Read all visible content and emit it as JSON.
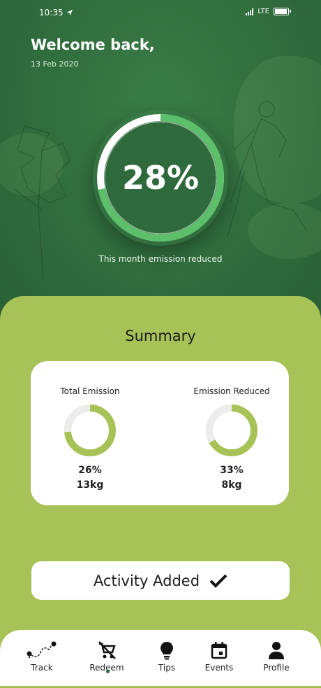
{
  "status": {
    "time": "10:35",
    "network": "LTE"
  },
  "header": {
    "greeting": "Welcome back,",
    "date": "13 Feb 2020"
  },
  "emission_ring": {
    "percent_text": "28%",
    "value": 0.28,
    "caption": "This month emission reduced"
  },
  "summary": {
    "title": "Summary",
    "metrics": [
      {
        "label": "Total Emission",
        "percent": "26%",
        "amount": "13kg",
        "value": 0.26
      },
      {
        "label": "Emission Reduced",
        "percent": "33%",
        "amount": "8kg",
        "value": 0.33
      }
    ]
  },
  "activity": {
    "label": "Activity Added"
  },
  "nav": {
    "items": [
      {
        "label": "Track",
        "icon": "route-icon"
      },
      {
        "label": "Redeem",
        "icon": "cart-off-icon"
      },
      {
        "label": "Tips",
        "icon": "lightbulb-icon"
      },
      {
        "label": "Events",
        "icon": "calendar-icon"
      },
      {
        "label": "Profile",
        "icon": "person-icon"
      }
    ],
    "active_index": 1
  },
  "colors": {
    "header_bg": "#2f6b3c",
    "accent_green": "#5cbf6a",
    "sheet_bg": "#a7c257",
    "ring_green": "#a7c257"
  }
}
